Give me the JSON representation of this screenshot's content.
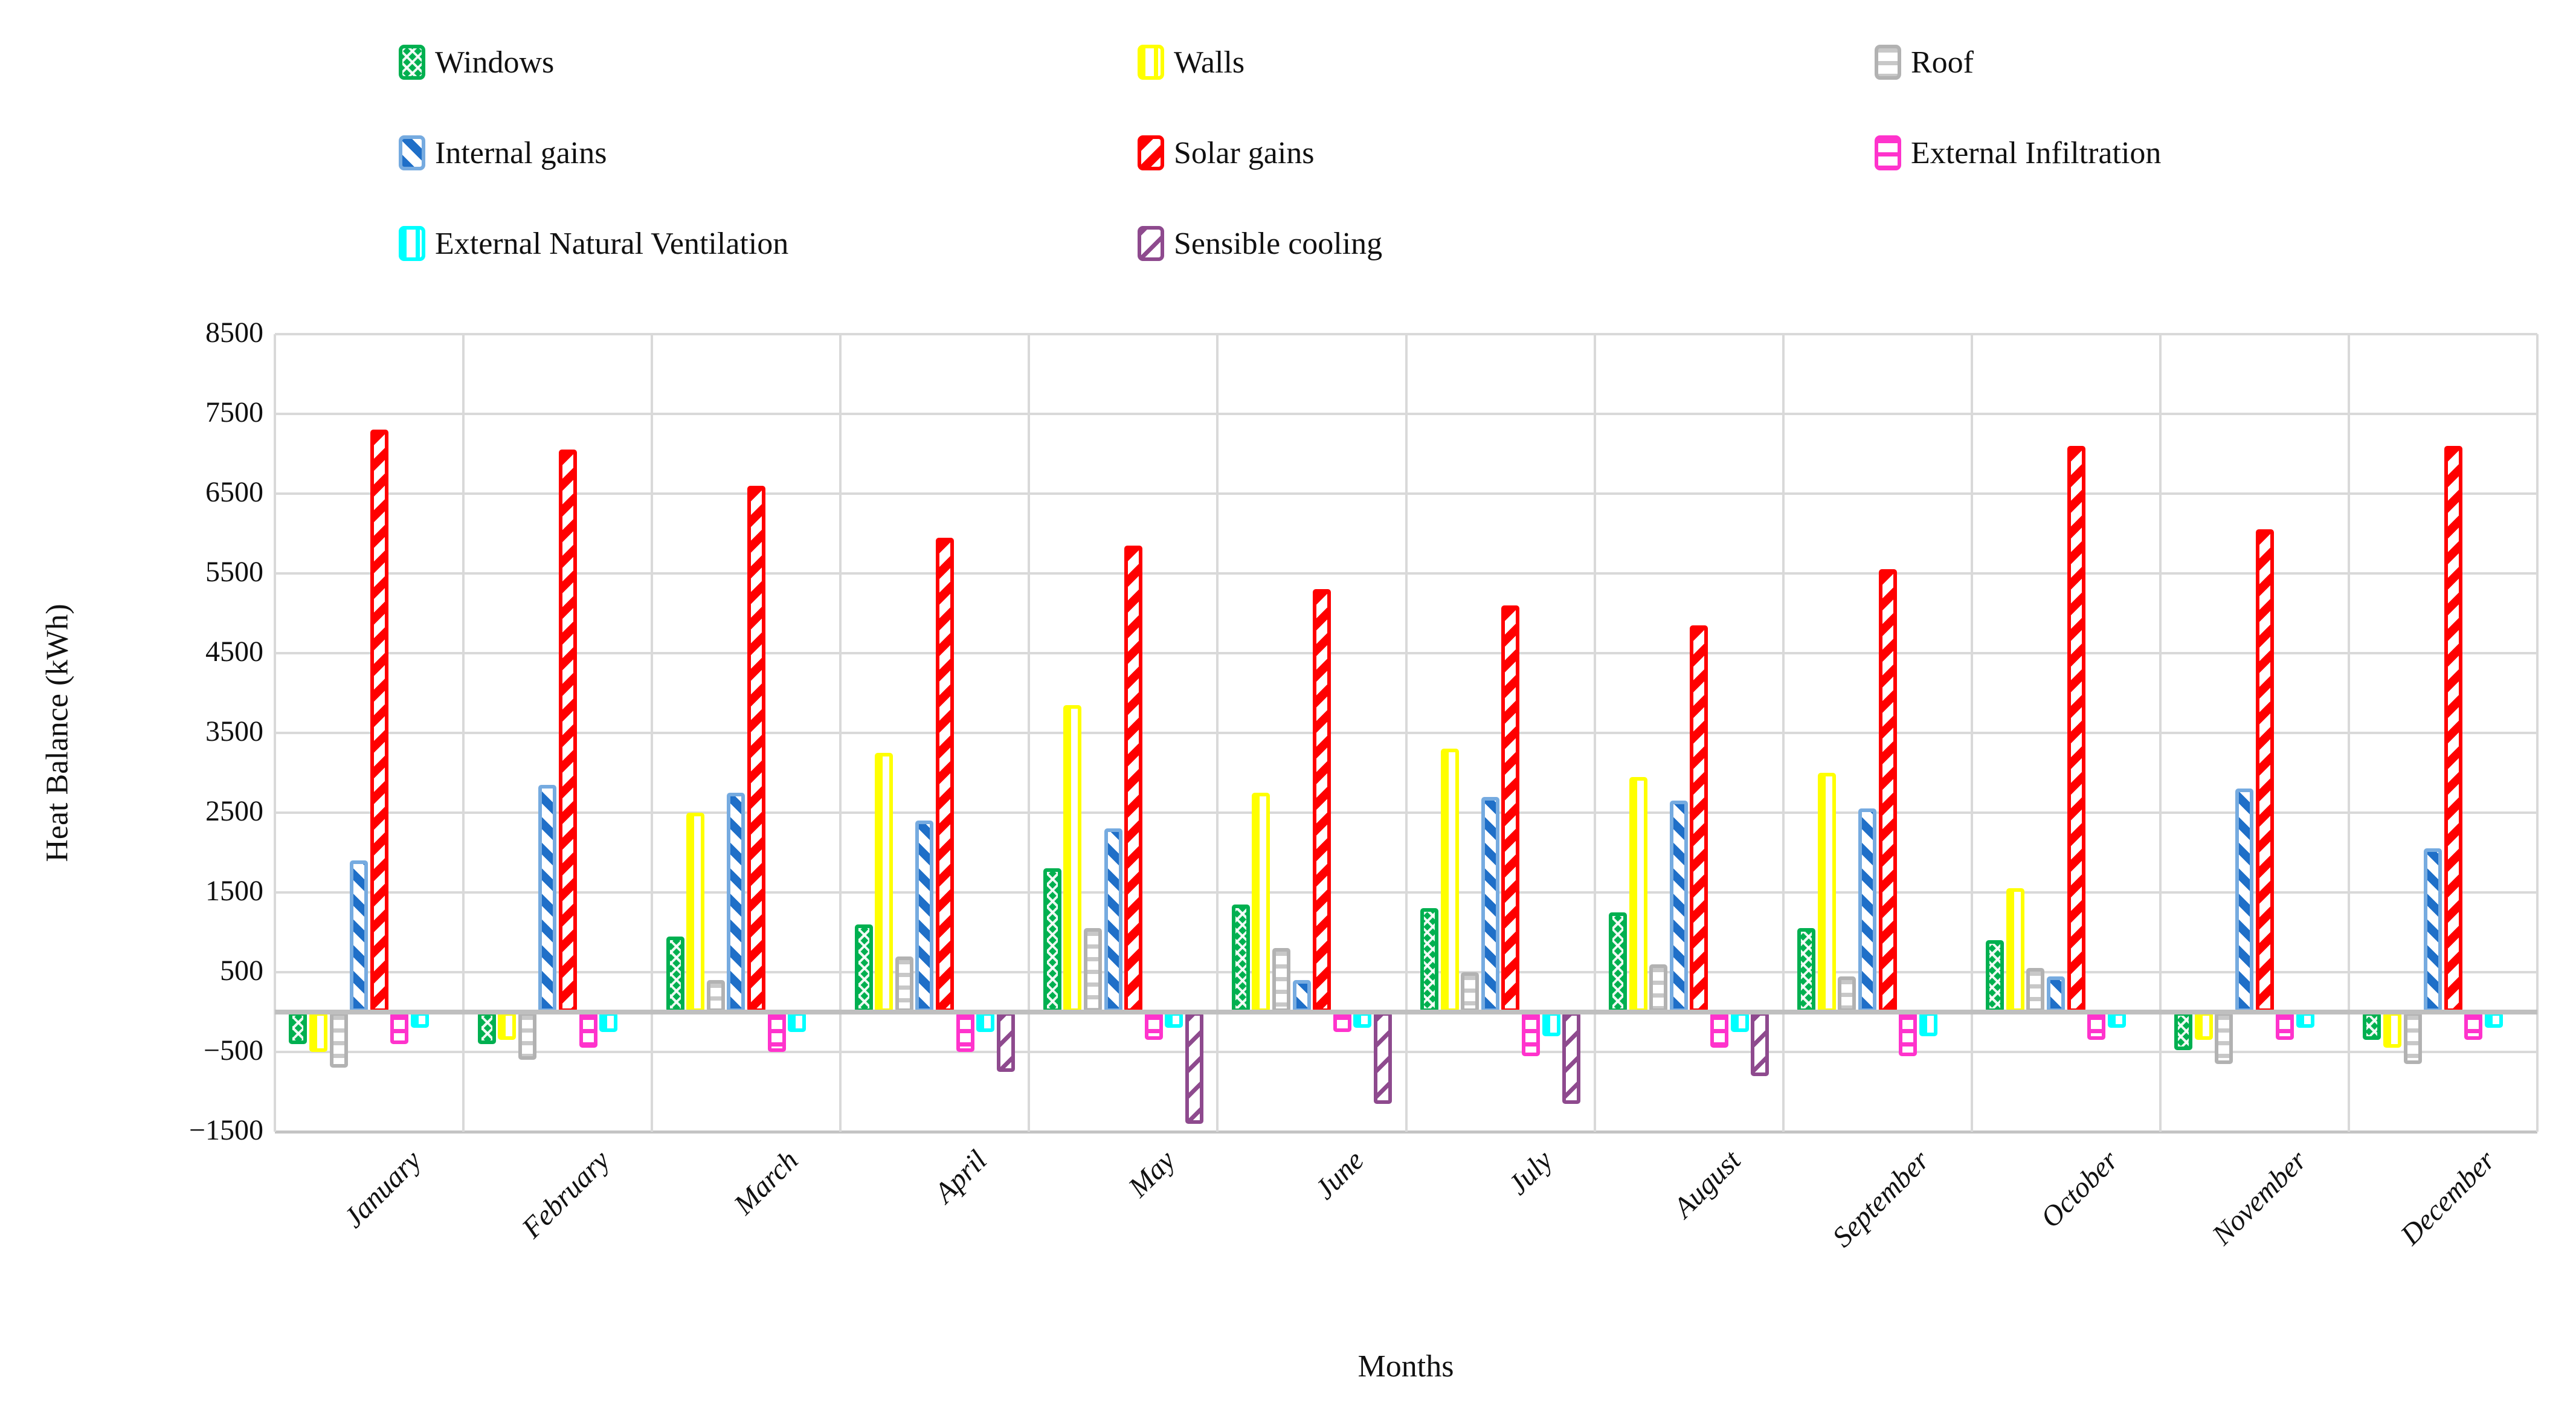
{
  "chart_data": {
    "type": "bar",
    "title": "",
    "xlabel": "Months",
    "ylabel": "Heat Balance (kWh)",
    "ylim": [
      -1500,
      8500
    ],
    "y_tick_step": 1000,
    "y_ticks": [
      8500,
      7500,
      6500,
      5500,
      4500,
      3500,
      2500,
      1500,
      500,
      -500,
      -1500
    ],
    "grid": true,
    "legend_position": "top",
    "legend_columns": 3,
    "categories": [
      "January",
      "February",
      "March",
      "April",
      "May",
      "June",
      "July",
      "August",
      "September",
      "October",
      "November",
      "December"
    ],
    "series": [
      {
        "name": "Windows",
        "color": "#00B050",
        "pattern": "diagonal-crosshatch",
        "values": [
          -400,
          -400,
          950,
          1100,
          1800,
          1350,
          1300,
          1250,
          1050,
          900,
          -480,
          -350
        ]
      },
      {
        "name": "Walls",
        "color": "#FFFF00",
        "pattern": "vertical-lines",
        "values": [
          -500,
          -350,
          2500,
          3250,
          3850,
          2750,
          3300,
          2950,
          3000,
          1550,
          -350,
          -450
        ]
      },
      {
        "name": "Roof",
        "color": "#BFBFBF",
        "pattern": "horizontal-lines",
        "values": [
          -700,
          -600,
          400,
          700,
          1050,
          800,
          500,
          600,
          450,
          550,
          -650,
          -650
        ]
      },
      {
        "name": "Internal gains",
        "color": "#76ABE0",
        "stripe_color": "#1F6FC8",
        "pattern": "diagonal-up",
        "values": [
          1900,
          2850,
          2750,
          2400,
          2300,
          400,
          2700,
          2650,
          2550,
          450,
          2800,
          2050
        ]
      },
      {
        "name": "Solar gains",
        "color": "#FF0000",
        "pattern": "diagonal-down",
        "values": [
          7300,
          7050,
          6600,
          5950,
          5850,
          5300,
          5100,
          4850,
          5550,
          7100,
          6050,
          7100
        ]
      },
      {
        "name": "External Infiltration",
        "color": "#FF33CC",
        "pattern": "horizontal-lines",
        "values": [
          -400,
          -450,
          -500,
          -500,
          -350,
          -250,
          -550,
          -450,
          -550,
          -350,
          -350,
          -350
        ]
      },
      {
        "name": "External Natural Ventilation",
        "color": "#00FFFF",
        "pattern": "vertical-lines",
        "values": [
          -200,
          -250,
          -250,
          -250,
          -200,
          -200,
          -300,
          -250,
          -300,
          -200,
          -200,
          -200
        ]
      },
      {
        "name": "Sensible cooling",
        "color": "#8E4A8E",
        "pattern": "diagonal-down-sparse",
        "values": [
          0,
          0,
          0,
          -750,
          -1400,
          -1150,
          -1150,
          -800,
          0,
          0,
          0,
          0
        ]
      }
    ]
  }
}
